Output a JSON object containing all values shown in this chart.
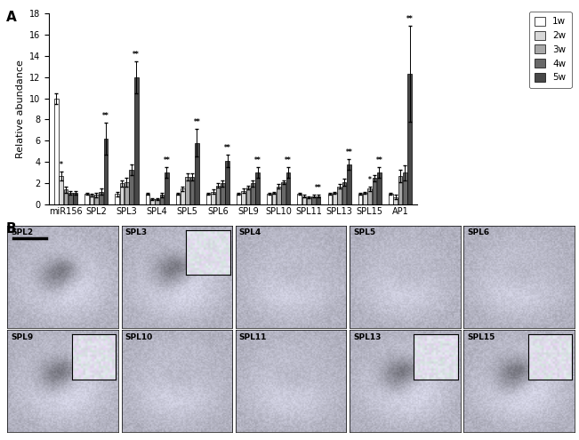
{
  "categories": [
    "miR156",
    "SPL2",
    "SPL3",
    "SPL4",
    "SPL5",
    "SPL6",
    "SPL9",
    "SPL10",
    "SPL11",
    "SPL13",
    "SPL15",
    "AP1"
  ],
  "weeks": [
    "1w",
    "2w",
    "3w",
    "4w",
    "5w"
  ],
  "bar_colors": [
    "#ffffff",
    "#d8d8d8",
    "#a8a8a8",
    "#686868",
    "#484848"
  ],
  "bar_edgecolor": "#000000",
  "values": [
    [
      10.0,
      2.7,
      1.4,
      1.1,
      1.1
    ],
    [
      1.0,
      0.9,
      0.9,
      1.2,
      6.2
    ],
    [
      1.0,
      2.0,
      2.1,
      3.3,
      12.0
    ],
    [
      1.0,
      0.5,
      0.5,
      0.9,
      3.0
    ],
    [
      1.0,
      1.5,
      2.6,
      2.6,
      5.8
    ],
    [
      1.0,
      1.2,
      1.8,
      2.0,
      4.1
    ],
    [
      1.0,
      1.3,
      1.6,
      2.0,
      3.0
    ],
    [
      1.0,
      1.1,
      1.7,
      2.1,
      3.0
    ],
    [
      1.0,
      0.8,
      0.7,
      0.8,
      0.8
    ],
    [
      1.0,
      1.1,
      1.7,
      2.1,
      3.8
    ],
    [
      1.0,
      1.1,
      1.5,
      2.5,
      3.0
    ],
    [
      1.0,
      0.7,
      2.7,
      3.0,
      12.3
    ]
  ],
  "errors": [
    [
      0.5,
      0.4,
      0.3,
      0.2,
      0.2
    ],
    [
      0.1,
      0.1,
      0.2,
      0.3,
      1.5
    ],
    [
      0.2,
      0.3,
      0.4,
      0.5,
      1.5
    ],
    [
      0.1,
      0.1,
      0.1,
      0.2,
      0.5
    ],
    [
      0.1,
      0.2,
      0.3,
      0.3,
      1.3
    ],
    [
      0.1,
      0.2,
      0.2,
      0.3,
      0.6
    ],
    [
      0.1,
      0.2,
      0.2,
      0.3,
      0.5
    ],
    [
      0.1,
      0.1,
      0.2,
      0.2,
      0.5
    ],
    [
      0.1,
      0.1,
      0.1,
      0.1,
      0.1
    ],
    [
      0.1,
      0.1,
      0.2,
      0.3,
      0.5
    ],
    [
      0.1,
      0.1,
      0.2,
      0.3,
      0.5
    ],
    [
      0.1,
      0.2,
      0.6,
      0.7,
      4.5
    ]
  ],
  "significance": [
    [
      null,
      "*",
      null,
      null,
      null
    ],
    [
      null,
      null,
      null,
      null,
      "**"
    ],
    [
      null,
      null,
      null,
      null,
      "**"
    ],
    [
      null,
      null,
      null,
      null,
      "**"
    ],
    [
      null,
      null,
      null,
      null,
      "**"
    ],
    [
      null,
      null,
      null,
      null,
      "**"
    ],
    [
      null,
      null,
      null,
      null,
      "**"
    ],
    [
      null,
      null,
      null,
      null,
      "**"
    ],
    [
      null,
      null,
      null,
      null,
      "**"
    ],
    [
      null,
      null,
      null,
      null,
      "**"
    ],
    [
      null,
      null,
      "*",
      null,
      "**"
    ],
    [
      null,
      null,
      null,
      null,
      "**"
    ]
  ],
  "ylabel": "Relative abundance",
  "ylim": [
    0,
    18
  ],
  "yticks": [
    0,
    2,
    4,
    6,
    8,
    10,
    12,
    14,
    16,
    18
  ],
  "panel_label_A": "A",
  "panel_label_B": "B",
  "background_color": "#ffffff",
  "panel_b_row1": [
    "SPL2",
    "SPL3",
    "SPL4",
    "SPL5",
    "SPL6"
  ],
  "panel_b_row2": [
    "SPL9",
    "SPL10",
    "SPL11",
    "SPL13",
    "SPL15"
  ],
  "inset_panels": [
    "SPL3",
    "SPL9",
    "SPL13",
    "SPL15"
  ],
  "img_base_color": 0.88,
  "img_tissue_color": 0.72
}
